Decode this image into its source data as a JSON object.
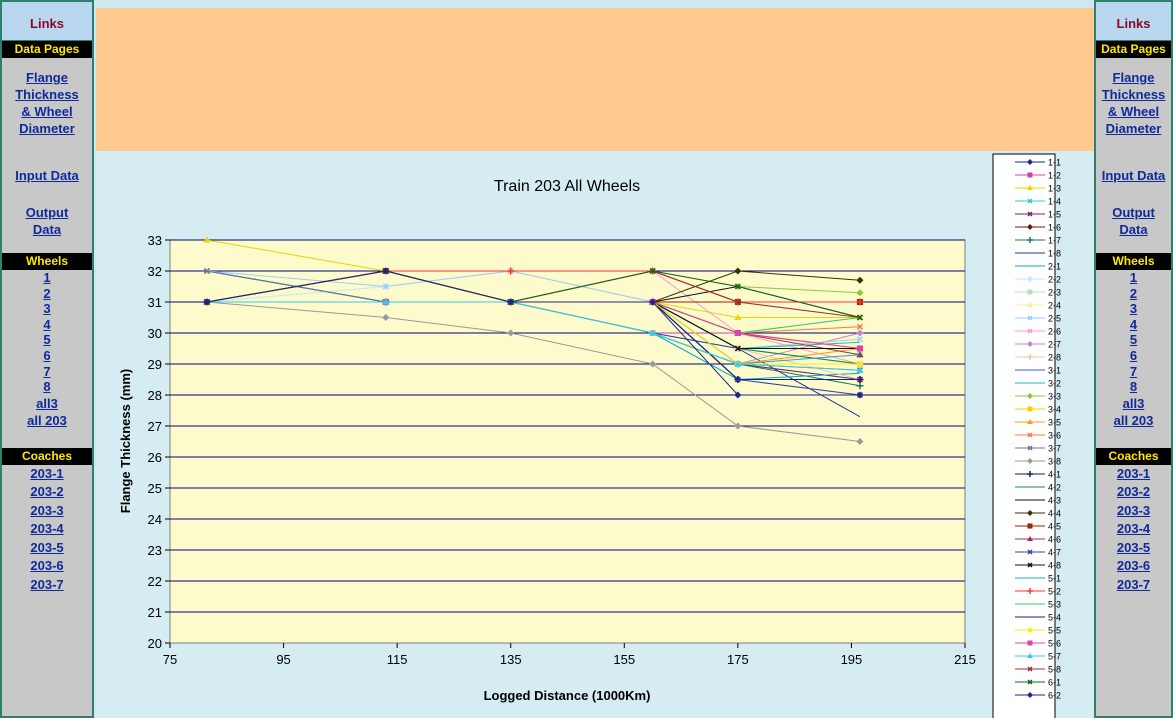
{
  "nav": {
    "links": "Links",
    "data_pages": "Data Pages",
    "flange_lines": [
      "Flange ",
      "Thickness",
      "& Wheel ",
      "Diameter"
    ],
    "input_data": "Input Data",
    "output_lines": [
      "Output ",
      "Data"
    ],
    "wheels": "Wheels",
    "wheel_links": [
      "1",
      "2",
      "3",
      "4",
      "5",
      "6",
      "7",
      "8",
      "all3",
      "all 203"
    ],
    "coaches": "Coaches",
    "coach_links": [
      "203-1",
      "203-2",
      "203-3",
      "203-4",
      "203-5",
      "203-6",
      "203-7"
    ]
  },
  "chart_data": {
    "type": "line",
    "title": "Train 203 All Wheels",
    "xlabel": "Logged Distance (1000Km)",
    "ylabel": "Flange Thickness (mm)",
    "xlim": [
      75,
      215
    ],
    "ylim": [
      20,
      33
    ],
    "xticks": [
      75,
      95,
      115,
      135,
      155,
      175,
      195,
      215
    ],
    "yticks": [
      20,
      21,
      22,
      23,
      24,
      25,
      26,
      27,
      28,
      29,
      30,
      31,
      32,
      33
    ],
    "grid": "horizontal",
    "legend": "right",
    "x": [
      81.5,
      113,
      135,
      160,
      175,
      196.5
    ],
    "series": [
      {
        "name": "1-1",
        "color": "#1a2a8a",
        "marker": "diamond",
        "values": [
          31,
          31,
          31,
          31,
          28.5,
          28.5
        ]
      },
      {
        "name": "1-2",
        "color": "#cc44aa",
        "marker": "square",
        "values": [
          31,
          32,
          31,
          30,
          30,
          29.5
        ]
      },
      {
        "name": "1-3",
        "color": "#e8d400",
        "marker": "triangle",
        "values": [
          33,
          32,
          32,
          31,
          30.5,
          30.5
        ]
      },
      {
        "name": "1-4",
        "color": "#33cccc",
        "marker": "x",
        "values": [
          32,
          31,
          31,
          31,
          29.5,
          29
        ]
      },
      {
        "name": "1-5",
        "color": "#7a1a7a",
        "marker": "x",
        "values": [
          32,
          31,
          31,
          30,
          29,
          28.5
        ]
      },
      {
        "name": "1-6",
        "color": "#7a1010",
        "marker": "diamond",
        "values": [
          31,
          32,
          31,
          32,
          31,
          31
        ]
      },
      {
        "name": "1-7",
        "color": "#117a5a",
        "marker": "plus",
        "values": [
          31,
          31,
          31,
          31,
          29,
          28.3
        ]
      },
      {
        "name": "1-8",
        "color": "#2233aa",
        "marker": "none",
        "values": [
          32,
          31,
          31,
          30,
          29.5,
          27.3
        ]
      },
      {
        "name": "2-1",
        "color": "#00aacc",
        "marker": "none",
        "values": [
          32,
          31,
          31,
          30,
          28.5,
          28.7
        ]
      },
      {
        "name": "2-2",
        "color": "#bfe8ff",
        "marker": "diamond",
        "values": [
          31,
          31.5,
          32,
          31,
          29.5,
          29.5
        ]
      },
      {
        "name": "2-3",
        "color": "#b8e0b8",
        "marker": "square",
        "values": [
          31,
          31,
          31,
          30,
          29,
          29.3
        ]
      },
      {
        "name": "2-4",
        "color": "#f0f0a0",
        "marker": "triangle",
        "values": [
          31,
          32,
          32,
          31,
          30,
          29.5
        ]
      },
      {
        "name": "2-5",
        "color": "#99ccff",
        "marker": "x",
        "values": [
          32,
          31.5,
          32,
          31,
          29.5,
          29.8
        ]
      },
      {
        "name": "2-6",
        "color": "#ff99cc",
        "marker": "x",
        "values": [
          31,
          32,
          32,
          32,
          30,
          29
        ]
      },
      {
        "name": "2-7",
        "color": "#bb88dd",
        "marker": "diamond",
        "values": [
          31,
          31,
          31,
          30,
          29,
          30
        ]
      },
      {
        "name": "2-8",
        "color": "#f0c8a0",
        "marker": "plus",
        "values": [
          31,
          32,
          31,
          31,
          29.5,
          28.5
        ]
      },
      {
        "name": "3-1",
        "color": "#3355ee",
        "marker": "none",
        "values": [
          31,
          31,
          31,
          31,
          29,
          29
        ]
      },
      {
        "name": "3-2",
        "color": "#22bbbb",
        "marker": "none",
        "values": [
          31,
          31,
          31,
          31,
          29.5,
          29.7
        ]
      },
      {
        "name": "3-3",
        "color": "#88cc33",
        "marker": "diamond",
        "values": [
          31,
          32,
          31,
          32,
          31.5,
          31.3
        ]
      },
      {
        "name": "3-4",
        "color": "#ffcc00",
        "marker": "square",
        "values": [
          31,
          32,
          31,
          31,
          30,
          29.5
        ]
      },
      {
        "name": "3-5",
        "color": "#ff9922",
        "marker": "triangle",
        "values": [
          31,
          31,
          31,
          30,
          29,
          29.5
        ]
      },
      {
        "name": "3-6",
        "color": "#ff7744",
        "marker": "x",
        "values": [
          31,
          32,
          31,
          31,
          30,
          30.2
        ]
      },
      {
        "name": "3-7",
        "color": "#667799",
        "marker": "x",
        "values": [
          32,
          31,
          31,
          31,
          29,
          28.8
        ]
      },
      {
        "name": "3-8",
        "color": "#999999",
        "marker": "diamond",
        "values": [
          31,
          30.5,
          30,
          29,
          27,
          26.5
        ]
      },
      {
        "name": "4-1",
        "color": "#11224a",
        "marker": "plus",
        "values": [
          31,
          31,
          31,
          31,
          28.5,
          28.5
        ]
      },
      {
        "name": "4-2",
        "color": "#1a8855",
        "marker": "none",
        "values": [
          31,
          31,
          31,
          31,
          29.5,
          29
        ]
      },
      {
        "name": "4-3",
        "color": "#111111",
        "marker": "none",
        "values": [
          31,
          32,
          31,
          31,
          31.5,
          30.5
        ]
      },
      {
        "name": "4-4",
        "color": "#333300",
        "marker": "diamond",
        "values": [
          31,
          32,
          31,
          31,
          32,
          31.7
        ]
      },
      {
        "name": "4-5",
        "color": "#992200",
        "marker": "square",
        "values": [
          31,
          32,
          31,
          31,
          31,
          31
        ]
      },
      {
        "name": "4-6",
        "color": "#993355",
        "marker": "triangle",
        "values": [
          31,
          31,
          31,
          31,
          30,
          29.3
        ]
      },
      {
        "name": "4-7",
        "color": "#334499",
        "marker": "x",
        "values": [
          31,
          31,
          31,
          31,
          28.5,
          28
        ]
      },
      {
        "name": "4-8",
        "color": "#111111",
        "marker": "x",
        "values": [
          31,
          31,
          31,
          31,
          29.5,
          29.5
        ]
      },
      {
        "name": "5-1",
        "color": "#22aacc",
        "marker": "none",
        "values": [
          31,
          31,
          31,
          30,
          29,
          29.3
        ]
      },
      {
        "name": "5-2",
        "color": "#ff3333",
        "marker": "plus",
        "values": [
          31,
          32,
          32,
          32,
          31,
          31
        ]
      },
      {
        "name": "5-3",
        "color": "#33cc66",
        "marker": "none",
        "values": [
          31,
          31,
          31,
          31,
          30,
          30.5
        ]
      },
      {
        "name": "5-4",
        "color": "#112288",
        "marker": "none",
        "values": [
          31,
          31,
          31,
          31,
          28.5,
          28.5
        ]
      },
      {
        "name": "5-5",
        "color": "#ffee00",
        "marker": "diamond",
        "values": [
          31,
          32,
          31,
          31,
          29,
          29
        ]
      },
      {
        "name": "5-6",
        "color": "#dd44aa",
        "marker": "square",
        "values": [
          31,
          31,
          31,
          31,
          30,
          29.5
        ]
      },
      {
        "name": "5-7",
        "color": "#33ccee",
        "marker": "triangle",
        "values": [
          31,
          31,
          31,
          30,
          29,
          28.8
        ]
      },
      {
        "name": "5-8",
        "color": "#993333",
        "marker": "x",
        "values": [
          31,
          32,
          31,
          32,
          31,
          30.5
        ]
      },
      {
        "name": "6-1",
        "color": "#116622",
        "marker": "x",
        "values": [
          31,
          32,
          31,
          32,
          31.5,
          30.5
        ]
      },
      {
        "name": "6-2",
        "color": "#222288",
        "marker": "diamond",
        "values": [
          31,
          32,
          31,
          31,
          28,
          28
        ]
      }
    ]
  }
}
